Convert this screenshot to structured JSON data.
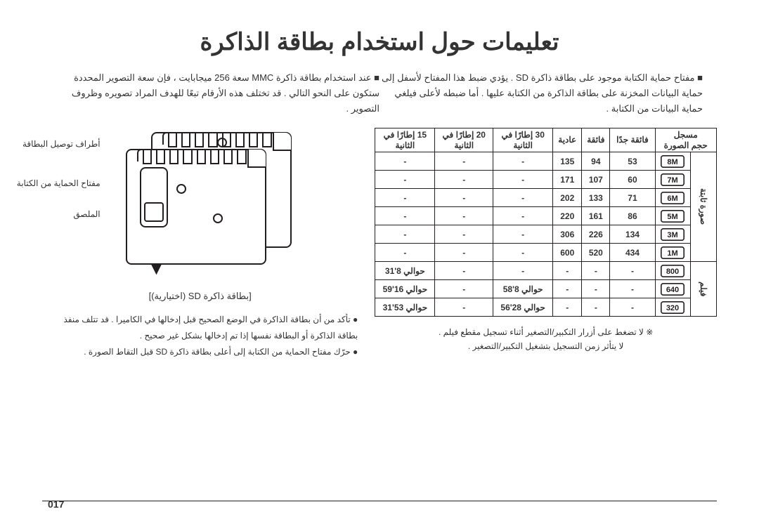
{
  "title": "تعليمات حول استخدام بطاقة الذاكرة",
  "intro_right": "■ عند استخدام بطاقة ذاكرة MMC سعة 256 ميجابايت ، فإن سعة التصوير المحددة ستكون على النحو التالي . قد تختلف هذه الأرقام تبعًا للهدف المراد تصويره وظروف التصوير .",
  "intro_left": "■ مفتاح حماية الكتابة موجود على بطاقة ذاكرة SD . يؤدي ضبط هذا المفتاح لأسفل إلى حماية البيانات المخزنة على بطاقة الذاكرة من الكتابة عليها . أما ضبطه لأعلى فيلغي حماية البيانات من الكتابة .",
  "sd_caption": "[بطاقة ذاكرة SD (اختيارية)]",
  "sd_labels": {
    "a": "أطراف توصيل البطاقة",
    "b": "مفتاح الحماية من الكتابة",
    "c": "الملصق"
  },
  "hints": [
    "● تأكد من أن بطاقة الذاكرة في الوضع الصحيح قبل إدخالها في الكاميرا . قد تتلف منفذ بطاقة الذاكرة أو البطاقة نفسها إذا تم إدخالها بشكل غير صحيح .",
    "● حرّك مفتاح الحماية من الكتابة إلى أعلى بطاقة ذاكرة SD قبل التقاط الصورة ."
  ],
  "table": {
    "headers": {
      "col1": "مسجل\nحجم الصورة",
      "col2": "فائقة جدًا",
      "col3": "فائقة",
      "col4": "عادية",
      "col5": "30 إطارًا في\nالثانية",
      "col6": "20 إطارًا في\nالثانية",
      "col7": "15 إطارًا في\nالثانية"
    },
    "cat_photo": "صورة ثابتة",
    "cat_video": "فيلم",
    "still": [
      {
        "size": "8M",
        "sf": "53",
        "f": "94",
        "n": "135"
      },
      {
        "size": "7M",
        "sf": "60",
        "f": "107",
        "n": "171"
      },
      {
        "size": "6M",
        "sf": "71",
        "f": "133",
        "n": "202"
      },
      {
        "size": "5M",
        "sf": "86",
        "f": "161",
        "n": "220"
      },
      {
        "size": "3M",
        "sf": "134",
        "f": "226",
        "n": "306"
      },
      {
        "size": "1M",
        "sf": "434",
        "f": "520",
        "n": "600"
      }
    ],
    "video": [
      {
        "size": "800",
        "f30": "-",
        "f20": "-",
        "f15": "حوالي 8'31"
      },
      {
        "size": "640",
        "f30": "حوالي 8'58",
        "f20": "-",
        "f15": "حوالي 16'59"
      },
      {
        "size": "320",
        "f30": "حوالي 28'56",
        "f20": "-",
        "f15": "حوالي 53'31"
      }
    ]
  },
  "table_note": "※ لا تضغط على أزرار التكبير/التصغير أثناء تسجيل مقطع فيلم .\nلا يتأثر زمن التسجيل بتشغيل التكبير/التصغير .",
  "page": "017",
  "colors": {
    "text": "#333333",
    "border": "#231f20"
  }
}
